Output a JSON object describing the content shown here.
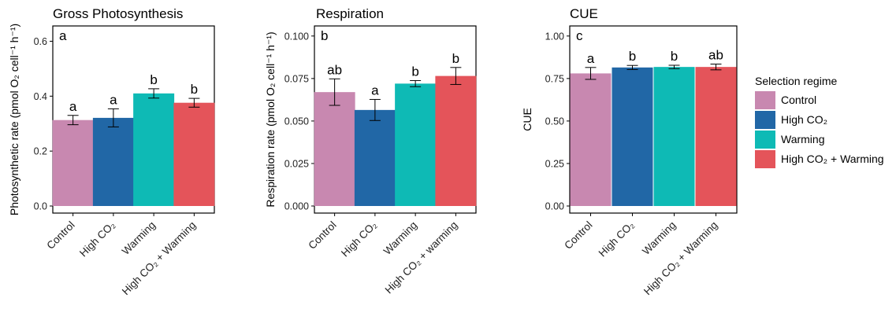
{
  "chart_data": [
    {
      "type": "bar",
      "title": "Gross Photosynthesis",
      "panel": "a",
      "ylabel": "Photosynthetic rate (pmol O₂ cell⁻¹ h⁻¹)",
      "ylim": [
        0,
        0.65
      ],
      "yticks": [
        "0.0",
        "0.2",
        "0.4",
        "0.6"
      ],
      "ytick_values": [
        0.0,
        0.2,
        0.4,
        0.6
      ],
      "categories": [
        "Control",
        "High CO₂",
        "Warming",
        "High CO₂ + Warming"
      ],
      "values": [
        0.313,
        0.321,
        0.41,
        0.376
      ],
      "errors": [
        0.017,
        0.033,
        0.017,
        0.016
      ],
      "significance": [
        "a",
        "a",
        "b",
        "b"
      ]
    },
    {
      "type": "bar",
      "title": "Respiration",
      "panel": "b",
      "ylabel": "Respiration rate (pmol O₂ cell⁻¹ h⁻¹)",
      "ylim": [
        0,
        0.105
      ],
      "yticks": [
        "0.000",
        "0.025",
        "0.050",
        "0.075",
        "0.100"
      ],
      "ytick_values": [
        0,
        0.025,
        0.05,
        0.075,
        0.1
      ],
      "categories": [
        "Control",
        "High CO₂",
        "Warming",
        "High CO₂ + warming"
      ],
      "values": [
        0.067,
        0.0565,
        0.072,
        0.0765
      ],
      "errors": [
        0.0078,
        0.0062,
        0.0018,
        0.005
      ],
      "significance": [
        "ab",
        "a",
        "b",
        "b"
      ]
    },
    {
      "type": "bar",
      "title": "CUE",
      "panel": "c",
      "ylabel": "CUE",
      "ylim": [
        0,
        1.05
      ],
      "yticks": [
        "0.00",
        "0.25",
        "0.50",
        "0.75",
        "1.00"
      ],
      "ytick_values": [
        0,
        0.25,
        0.5,
        0.75,
        1.0
      ],
      "categories": [
        "Control",
        "High CO₂",
        "Warming",
        "High CO₂ + Warming"
      ],
      "values": [
        0.78,
        0.815,
        0.818,
        0.818
      ],
      "errors": [
        0.035,
        0.012,
        0.01,
        0.017
      ],
      "significance": [
        "a",
        "b",
        "b",
        "ab"
      ]
    }
  ],
  "legend": {
    "title": "Selection regime",
    "position": "right",
    "items": [
      {
        "label": "Control",
        "color": "#c888b0"
      },
      {
        "label": "High CO₂",
        "color": "#2167a6"
      },
      {
        "label": "Warming",
        "color": "#0ebab5"
      },
      {
        "label": "High CO₂ + Warming",
        "color": "#e4545a"
      }
    ]
  },
  "colors": [
    "#c888b0",
    "#2167a6",
    "#0ebab5",
    "#e4545a"
  ]
}
